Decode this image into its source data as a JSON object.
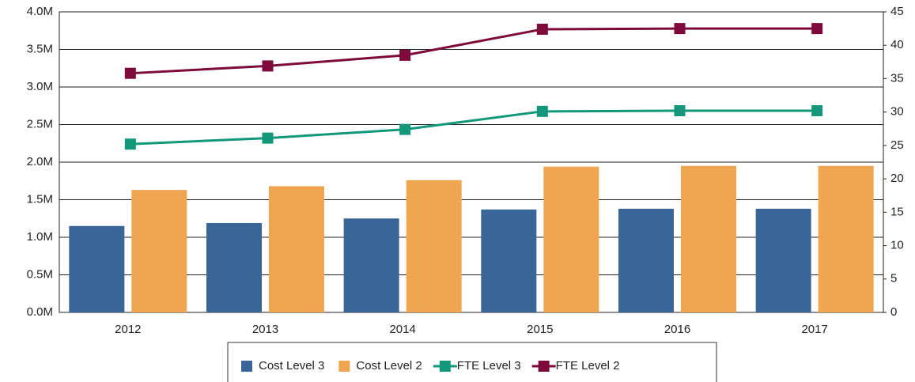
{
  "chart_data": {
    "type": "bar",
    "categories": [
      "2012",
      "2013",
      "2014",
      "2015",
      "2016",
      "2017"
    ],
    "series": [
      {
        "name": "Cost Level 3",
        "type": "bar",
        "color": "#3a6598",
        "values": [
          1150000,
          1190000,
          1250000,
          1370000,
          1380000,
          1380000
        ]
      },
      {
        "name": "Cost Level 2",
        "type": "bar",
        "color": "#f0a551",
        "values": [
          1630000,
          1680000,
          1760000,
          1940000,
          1950000,
          1950000
        ]
      },
      {
        "name": "FTE Level 3",
        "type": "line",
        "axis": "y2",
        "color": "#13977a",
        "values": [
          25.2,
          26.1,
          27.4,
          30.1,
          30.2,
          30.2
        ]
      },
      {
        "name": "FTE Level 2",
        "type": "line",
        "axis": "y2",
        "color": "#7d0a3a",
        "values": [
          35.8,
          36.9,
          38.5,
          42.4,
          42.5,
          42.5
        ]
      }
    ],
    "ylim": [
      0,
      4000000
    ],
    "yticks": [
      {
        "value": 0,
        "label": "0.0M"
      },
      {
        "value": 500000,
        "label": "0.5M"
      },
      {
        "value": 1000000,
        "label": "1.0M"
      },
      {
        "value": 1500000,
        "label": "1.5M"
      },
      {
        "value": 2000000,
        "label": "2.0M"
      },
      {
        "value": 2500000,
        "label": "2.5M"
      },
      {
        "value": 3000000,
        "label": "3.0M"
      },
      {
        "value": 3500000,
        "label": "3.5M"
      },
      {
        "value": 4000000,
        "label": "4.0M"
      }
    ],
    "y2lim": [
      0,
      45
    ],
    "y2ticks": [
      0,
      5,
      10,
      15,
      20,
      25,
      30,
      35,
      40,
      45
    ],
    "grid": true,
    "legend": "bottom"
  }
}
